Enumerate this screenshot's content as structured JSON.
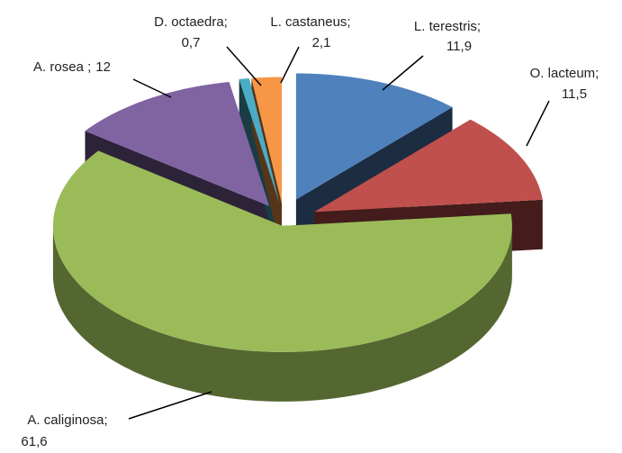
{
  "chart_data": {
    "type": "pie",
    "categories": [
      "L. terestris;",
      "O. lacteum;",
      "A. caliginosa;",
      "A. rosea ;",
      "D. octaedra;",
      "L. castaneus;"
    ],
    "values": [
      11.9,
      11.5,
      61.6,
      12,
      0.7,
      2.1
    ],
    "value_labels": [
      "11,9",
      "11,5",
      "61,6",
      "12",
      "0,7",
      "2,1"
    ],
    "colors": [
      "#4f81bd",
      "#c0504d",
      "#9bbb59",
      "#8064a2",
      "#4bacc6",
      "#f79646"
    ]
  }
}
